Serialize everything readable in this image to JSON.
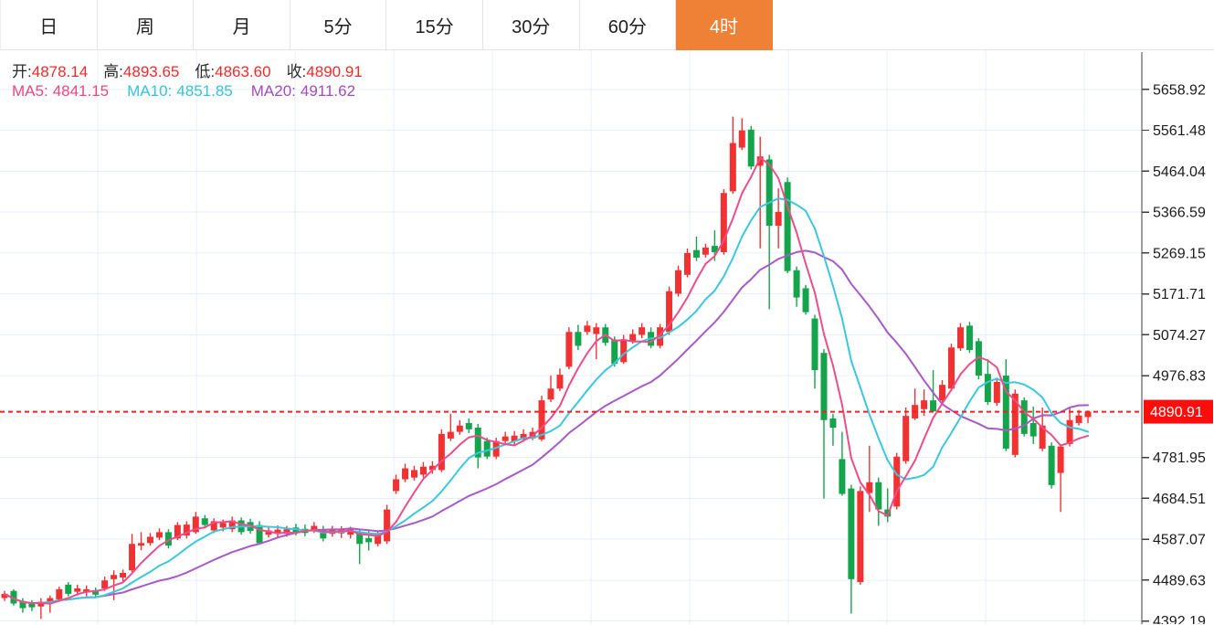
{
  "tabs": {
    "items": [
      {
        "key": "day",
        "label": "日",
        "active": false
      },
      {
        "key": "week",
        "label": "周",
        "active": false
      },
      {
        "key": "month",
        "label": "月",
        "active": false
      },
      {
        "key": "5min",
        "label": "5分",
        "active": false
      },
      {
        "key": "15min",
        "label": "15分",
        "active": false
      },
      {
        "key": "30min",
        "label": "30分",
        "active": false
      },
      {
        "key": "60min",
        "label": "60分",
        "active": false
      },
      {
        "key": "4hour",
        "label": "4时",
        "active": true
      }
    ],
    "active_bg": "#ee8136",
    "active_text_color": "#ffffff"
  },
  "legend": {
    "ohlc": [
      {
        "label": "开:",
        "value": "4878.14"
      },
      {
        "label": "高:",
        "value": "4893.65"
      },
      {
        "label": "低:",
        "value": "4863.60"
      },
      {
        "label": "收:",
        "value": "4890.91"
      }
    ],
    "ohlc_value_color": "#f52a2a",
    "mas": [
      {
        "label": "MA5:",
        "value": "4841.15",
        "color": "#e8487e"
      },
      {
        "label": "MA10:",
        "value": "4851.85",
        "color": "#35c3da"
      },
      {
        "label": "MA20:",
        "value": "4911.62",
        "color": "#a24bc0"
      }
    ]
  },
  "chart_data": {
    "type": "candlestick",
    "title": "",
    "interval_selected": "4时",
    "ylim": [
      4385,
      5752
    ],
    "y_ticks_labeled": [
      5658.92,
      5561.48,
      5464.04,
      5366.59,
      5269.15,
      5171.71,
      5074.27,
      4976.83,
      4781.95,
      4684.51,
      4587.07,
      4489.63,
      4392.19
    ],
    "y_ticks_all": [
      5658.92,
      5561.48,
      5464.04,
      5366.59,
      5269.15,
      5171.71,
      5074.27,
      4976.83,
      4879.39,
      4781.95,
      4684.51,
      4587.07,
      4489.63,
      4392.19
    ],
    "grid": true,
    "legend_position": "top-left",
    "up_color": "#f23232",
    "down_color": "#14a44b",
    "ma_periods": [
      5,
      10,
      20
    ],
    "ma_colors": [
      "#ec4d8b",
      "#3bc7de",
      "#a75ac8"
    ],
    "grid_color": "#e7edf6",
    "axis_color": "#3c3c3c",
    "tick_label_color": "#1b1b1b",
    "price_line": {
      "value": 4890.91,
      "label": "4890.91",
      "line_color": "#f61f1f",
      "label_bg": "#fe0d0d",
      "label_text_color": "#ffffff"
    },
    "last_candle_ohlc": {
      "open": 4878.14,
      "high": 4893.65,
      "low": 4863.6,
      "close": 4890.91
    },
    "ma_last_values": {
      "MA5": 4841.15,
      "MA10": 4851.85,
      "MA20": 4911.62
    },
    "candles": [
      [
        4447,
        4464,
        4440,
        4457
      ],
      [
        4464,
        4468,
        4429,
        4434
      ],
      [
        4440,
        4447,
        4412,
        4423
      ],
      [
        4436,
        4442,
        4416,
        4425
      ],
      [
        4427,
        4447,
        4397,
        4438
      ],
      [
        4436,
        4453,
        4412,
        4447
      ],
      [
        4444,
        4474,
        4438,
        4468
      ],
      [
        4479,
        4485,
        4451,
        4457
      ],
      [
        4462,
        4479,
        4453,
        4470
      ],
      [
        4460,
        4477,
        4451,
        4468
      ],
      [
        4466,
        4472,
        4449,
        4455
      ],
      [
        4470,
        4498,
        4464,
        4489
      ],
      [
        4492,
        4513,
        4442,
        4502
      ],
      [
        4496,
        4515,
        4487,
        4507
      ],
      [
        4513,
        4600,
        4509,
        4576
      ],
      [
        4572,
        4604,
        4561,
        4578
      ],
      [
        4578,
        4602,
        4572,
        4593
      ],
      [
        4591,
        4613,
        4585,
        4604
      ],
      [
        4604,
        4611,
        4565,
        4572
      ],
      [
        4589,
        4628,
        4585,
        4621
      ],
      [
        4596,
        4630,
        4589,
        4622
      ],
      [
        4604,
        4652,
        4600,
        4641
      ],
      [
        4637,
        4645,
        4613,
        4621
      ],
      [
        4608,
        4637,
        4602,
        4630
      ],
      [
        4615,
        4634,
        4606,
        4626
      ],
      [
        4611,
        4641,
        4604,
        4632
      ],
      [
        4632,
        4639,
        4598,
        4604
      ],
      [
        4628,
        4636,
        4600,
        4607
      ],
      [
        4621,
        4630,
        4574,
        4578
      ],
      [
        4598,
        4617,
        4591,
        4608
      ],
      [
        4600,
        4620,
        4592,
        4610
      ],
      [
        4600,
        4619,
        4593,
        4611
      ],
      [
        4615,
        4624,
        4596,
        4604
      ],
      [
        4612,
        4622,
        4594,
        4602
      ],
      [
        4608,
        4628,
        4602,
        4619
      ],
      [
        4611,
        4619,
        4582,
        4589
      ],
      [
        4600,
        4619,
        4593,
        4611
      ],
      [
        4601,
        4618,
        4590,
        4609
      ],
      [
        4598,
        4617,
        4589,
        4611
      ],
      [
        4604,
        4611,
        4528,
        4576
      ],
      [
        4590,
        4610,
        4560,
        4580
      ],
      [
        4576,
        4606,
        4570,
        4598
      ],
      [
        4582,
        4669,
        4576,
        4658
      ],
      [
        4702,
        4741,
        4695,
        4730
      ],
      [
        4730,
        4767,
        4723,
        4756
      ],
      [
        4734,
        4762,
        4727,
        4752
      ],
      [
        4741,
        4771,
        4734,
        4760
      ],
      [
        4752,
        4773,
        4743,
        4762
      ],
      [
        4752,
        4849,
        4747,
        4838
      ],
      [
        4827,
        4886,
        4821,
        4843
      ],
      [
        4843,
        4871,
        4836,
        4858
      ],
      [
        4864,
        4875,
        4840,
        4849
      ],
      [
        4853,
        4862,
        4756,
        4782
      ],
      [
        4821,
        4829,
        4778,
        4784
      ],
      [
        4784,
        4829,
        4778,
        4821
      ],
      [
        4821,
        4843,
        4814,
        4832
      ],
      [
        4820,
        4845,
        4812,
        4834
      ],
      [
        4825,
        4849,
        4819,
        4838
      ],
      [
        4827,
        4853,
        4823,
        4843
      ],
      [
        4825,
        4929,
        4821,
        4918
      ],
      [
        4920,
        4977,
        4914,
        4946
      ],
      [
        4946,
        4994,
        4940,
        4979
      ],
      [
        4998,
        5092,
        4992,
        5081
      ],
      [
        5081,
        5098,
        5038,
        5048
      ],
      [
        5081,
        5107,
        5074,
        5096
      ],
      [
        5076,
        5102,
        5016,
        5092
      ],
      [
        5092,
        5100,
        5048,
        5055
      ],
      [
        5063,
        5070,
        4998,
        5005
      ],
      [
        5009,
        5074,
        5005,
        5063
      ],
      [
        5059,
        5087,
        5053,
        5076
      ],
      [
        5074,
        5102,
        5066,
        5092
      ],
      [
        5081,
        5092,
        5042,
        5048
      ],
      [
        5048,
        5100,
        5042,
        5092
      ],
      [
        5081,
        5189,
        5074,
        5178
      ],
      [
        5172,
        5239,
        5165,
        5228
      ],
      [
        5217,
        5280,
        5211,
        5269
      ],
      [
        5276,
        5308,
        5250,
        5258
      ],
      [
        5265,
        5291,
        5258,
        5282
      ],
      [
        5286,
        5323,
        5250,
        5271
      ],
      [
        5271,
        5421,
        5265,
        5412
      ],
      [
        5416,
        5594,
        5410,
        5531
      ],
      [
        5520,
        5590,
        5514,
        5561
      ],
      [
        5563,
        5572,
        5468,
        5475
      ],
      [
        5477,
        5546,
        5280,
        5499
      ],
      [
        5492,
        5503,
        5135,
        5334
      ],
      [
        5334,
        5423,
        5280,
        5367
      ],
      [
        5438,
        5449,
        5221,
        5226
      ],
      [
        5228,
        5237,
        5141,
        5163
      ],
      [
        5185,
        5193,
        5122,
        5128
      ],
      [
        5113,
        5122,
        4946,
        4990
      ],
      [
        5031,
        5040,
        4684,
        4871
      ],
      [
        4875,
        4886,
        4810,
        4853
      ],
      [
        4778,
        4843,
        4691,
        4695
      ],
      [
        4708,
        4717,
        4410,
        4492
      ],
      [
        4485,
        4713,
        4479,
        4702
      ],
      [
        4697,
        4810,
        4652,
        4723
      ],
      [
        4723,
        4734,
        4619,
        4658
      ],
      [
        4658,
        4708,
        4628,
        4641
      ],
      [
        4665,
        4793,
        4658,
        4784
      ],
      [
        4773,
        4901,
        4767,
        4881
      ],
      [
        4875,
        4946,
        4871,
        4907
      ],
      [
        4897,
        4944,
        4881,
        4918
      ],
      [
        4918,
        4990,
        4890,
        4892
      ],
      [
        4918,
        4966,
        4912,
        4955
      ],
      [
        4946,
        5053,
        4940,
        5044
      ],
      [
        5042,
        5102,
        5036,
        5092
      ],
      [
        5096,
        5105,
        5031,
        5038
      ],
      [
        5059,
        5066,
        4968,
        4977
      ],
      [
        4981,
        5016,
        4907,
        4914
      ],
      [
        4912,
        4972,
        4905,
        4962
      ],
      [
        4977,
        5016,
        4797,
        4803
      ],
      [
        4788,
        4944,
        4782,
        4934
      ],
      [
        4918,
        4925,
        4832,
        4838
      ],
      [
        4864,
        4903,
        4814,
        4832
      ],
      [
        4803,
        4901,
        4797,
        4858
      ],
      [
        4810,
        4818,
        4708,
        4716
      ],
      [
        4745,
        4814,
        4652,
        4808
      ],
      [
        4814,
        4901,
        4808,
        4871
      ],
      [
        4864,
        4895,
        4858,
        4882
      ],
      [
        4878.14,
        4893.65,
        4863.6,
        4890.91
      ]
    ]
  }
}
